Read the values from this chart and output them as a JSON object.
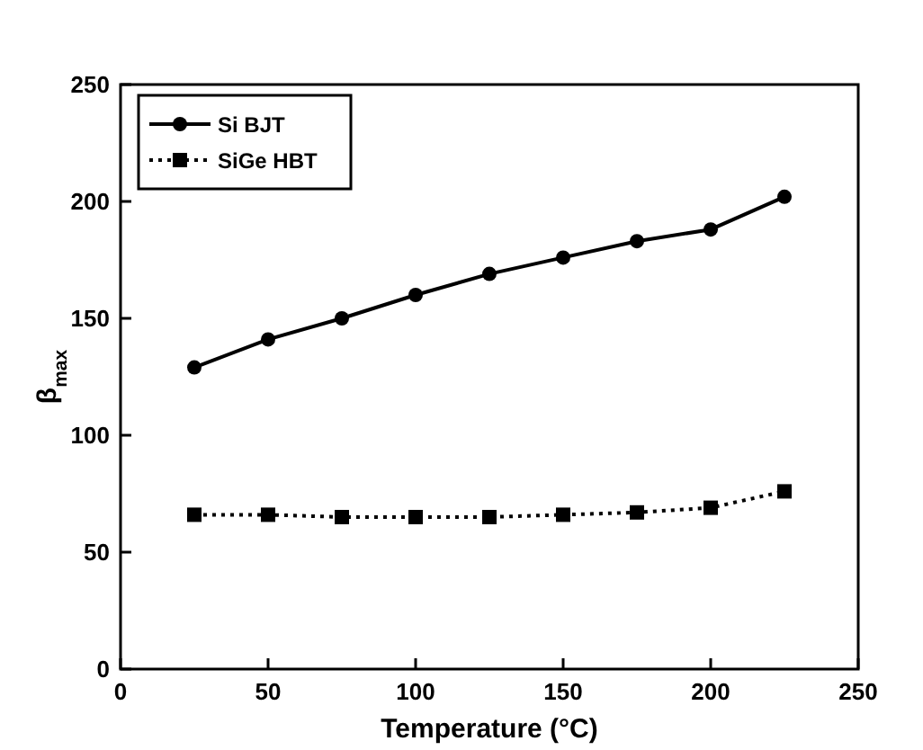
{
  "chart_data": {
    "type": "line",
    "xlabel": "Temperature (°C)",
    "ylabel": "β$_{max}$",
    "x": [
      25,
      50,
      75,
      100,
      125,
      150,
      175,
      200,
      225
    ],
    "series": [
      {
        "name": "Si BJT",
        "color": "#000000",
        "marker": "circle",
        "line_style": "solid",
        "values": [
          129,
          141,
          150,
          160,
          169,
          176,
          183,
          188,
          202
        ]
      },
      {
        "name": "SiGe HBT",
        "color": "#000000",
        "marker": "square",
        "line_style": "dotted",
        "values": [
          66,
          66,
          65,
          65,
          65,
          66,
          67,
          69,
          76
        ]
      }
    ],
    "xlim": [
      0,
      250
    ],
    "xticks": [
      0,
      50,
      100,
      150,
      200,
      250
    ],
    "ylim": [
      0,
      250
    ],
    "yticks": [
      0,
      50,
      100,
      150,
      200,
      250
    ],
    "grid": false,
    "legend": "top left"
  }
}
